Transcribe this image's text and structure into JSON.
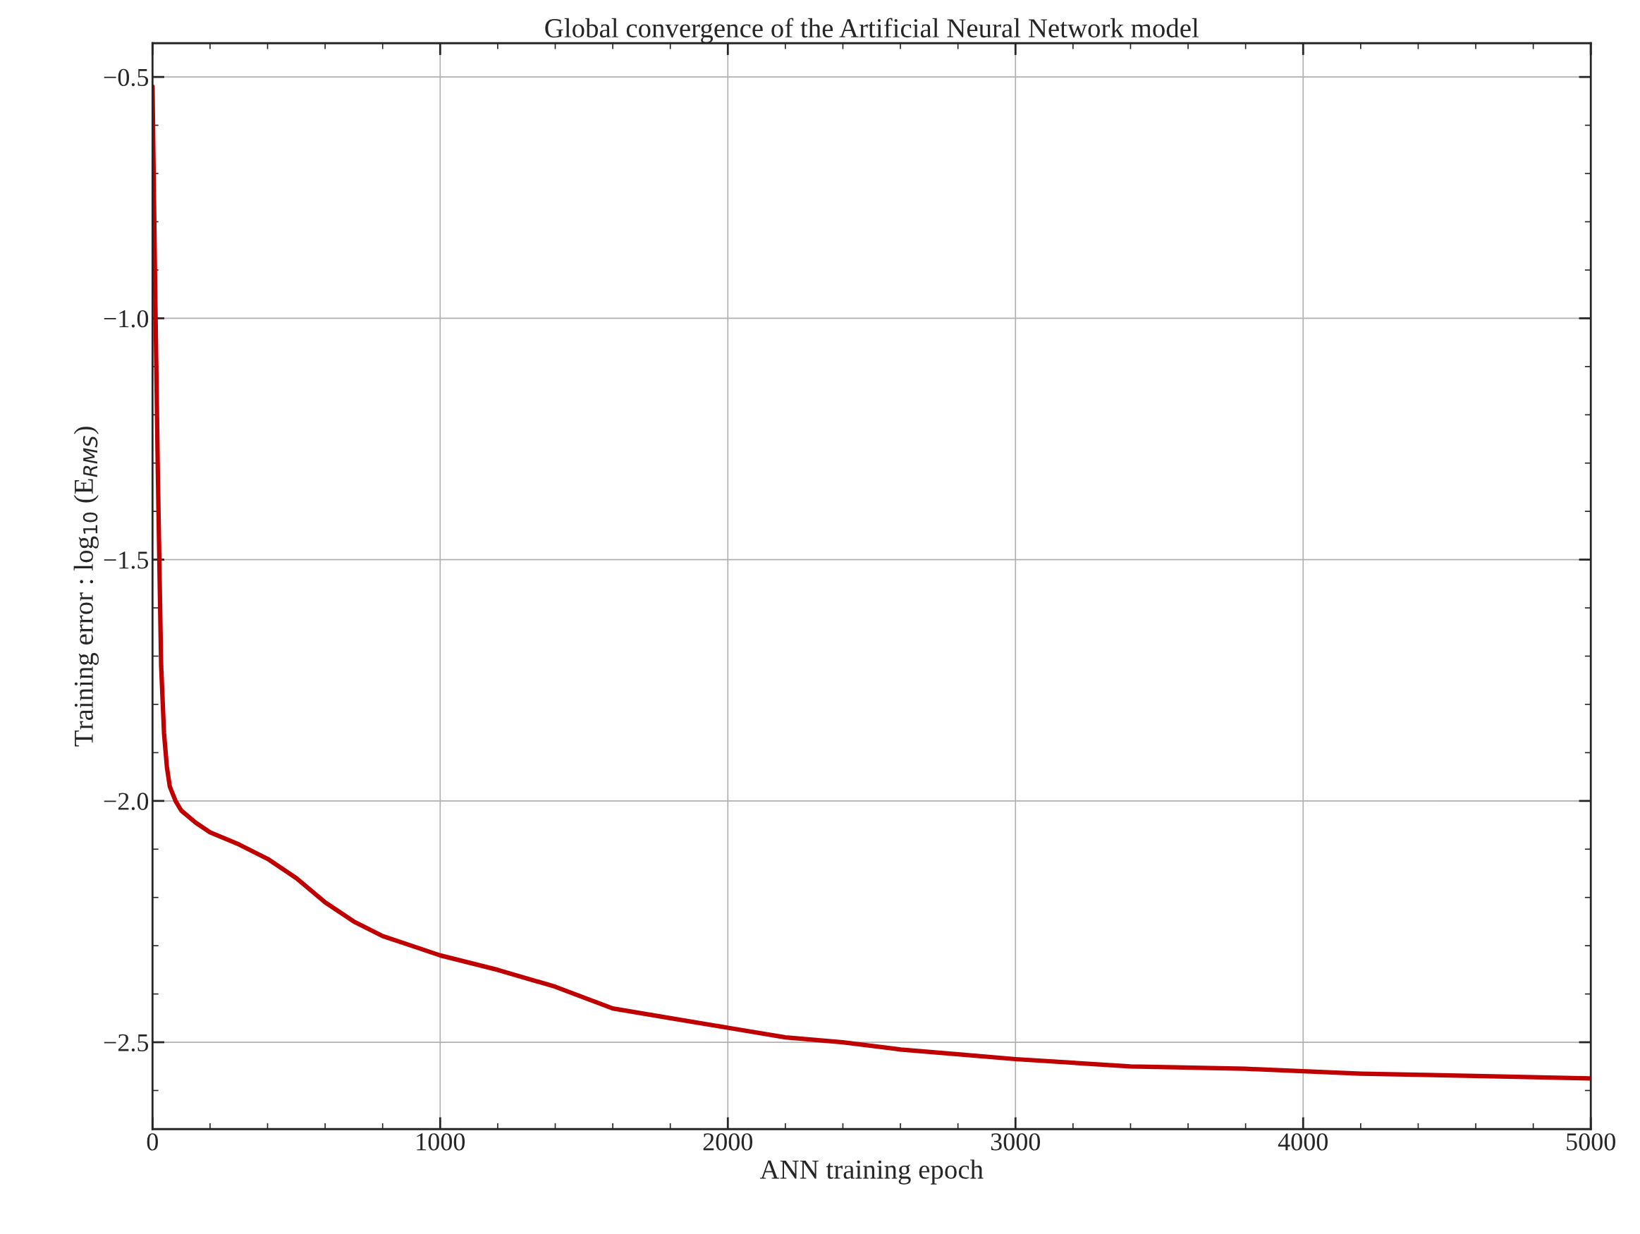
{
  "chart_data": {
    "type": "line",
    "title": "Global convergence of the Artificial Neural Network model",
    "xlabel": "ANN training epoch",
    "ylabel": "Training error : log$_{10}$ (E$_{RMS}$)",
    "xlim": [
      0,
      5000
    ],
    "ylim": [
      -2.68,
      -0.43
    ],
    "xticks": [
      0,
      1000,
      2000,
      3000,
      4000,
      5000
    ],
    "yticks": [
      {
        "value": -2.5,
        "label": "−2.5"
      },
      {
        "value": -2.0,
        "label": "−2.0"
      },
      {
        "value": -1.5,
        "label": "−1.5"
      },
      {
        "value": -1.0,
        "label": "−1.0"
      },
      {
        "value": -0.5,
        "label": "−0.5"
      }
    ],
    "grid": true,
    "marker": "none",
    "line_style": "solid",
    "series": [
      {
        "color": "#c00000",
        "x": [
          0,
          5,
          10,
          18,
          25,
          30,
          40,
          50,
          60,
          80,
          100,
          150,
          200,
          300,
          400,
          500,
          600,
          700,
          800,
          900,
          1000,
          1200,
          1400,
          1600,
          1800,
          2000,
          2200,
          2400,
          2600,
          2800,
          3000,
          3400,
          3800,
          4200,
          4600,
          5000
        ],
        "values": [
          -0.52,
          -0.75,
          -0.97,
          -1.3,
          -1.55,
          -1.72,
          -1.86,
          -1.93,
          -1.97,
          -2.0,
          -2.02,
          -2.045,
          -2.065,
          -2.09,
          -2.12,
          -2.16,
          -2.21,
          -2.25,
          -2.28,
          -2.3,
          -2.32,
          -2.35,
          -2.385,
          -2.43,
          -2.45,
          -2.47,
          -2.49,
          -2.5,
          -2.515,
          -2.525,
          -2.535,
          -2.55,
          -2.555,
          -2.565,
          -2.57,
          -2.575
        ]
      }
    ]
  }
}
